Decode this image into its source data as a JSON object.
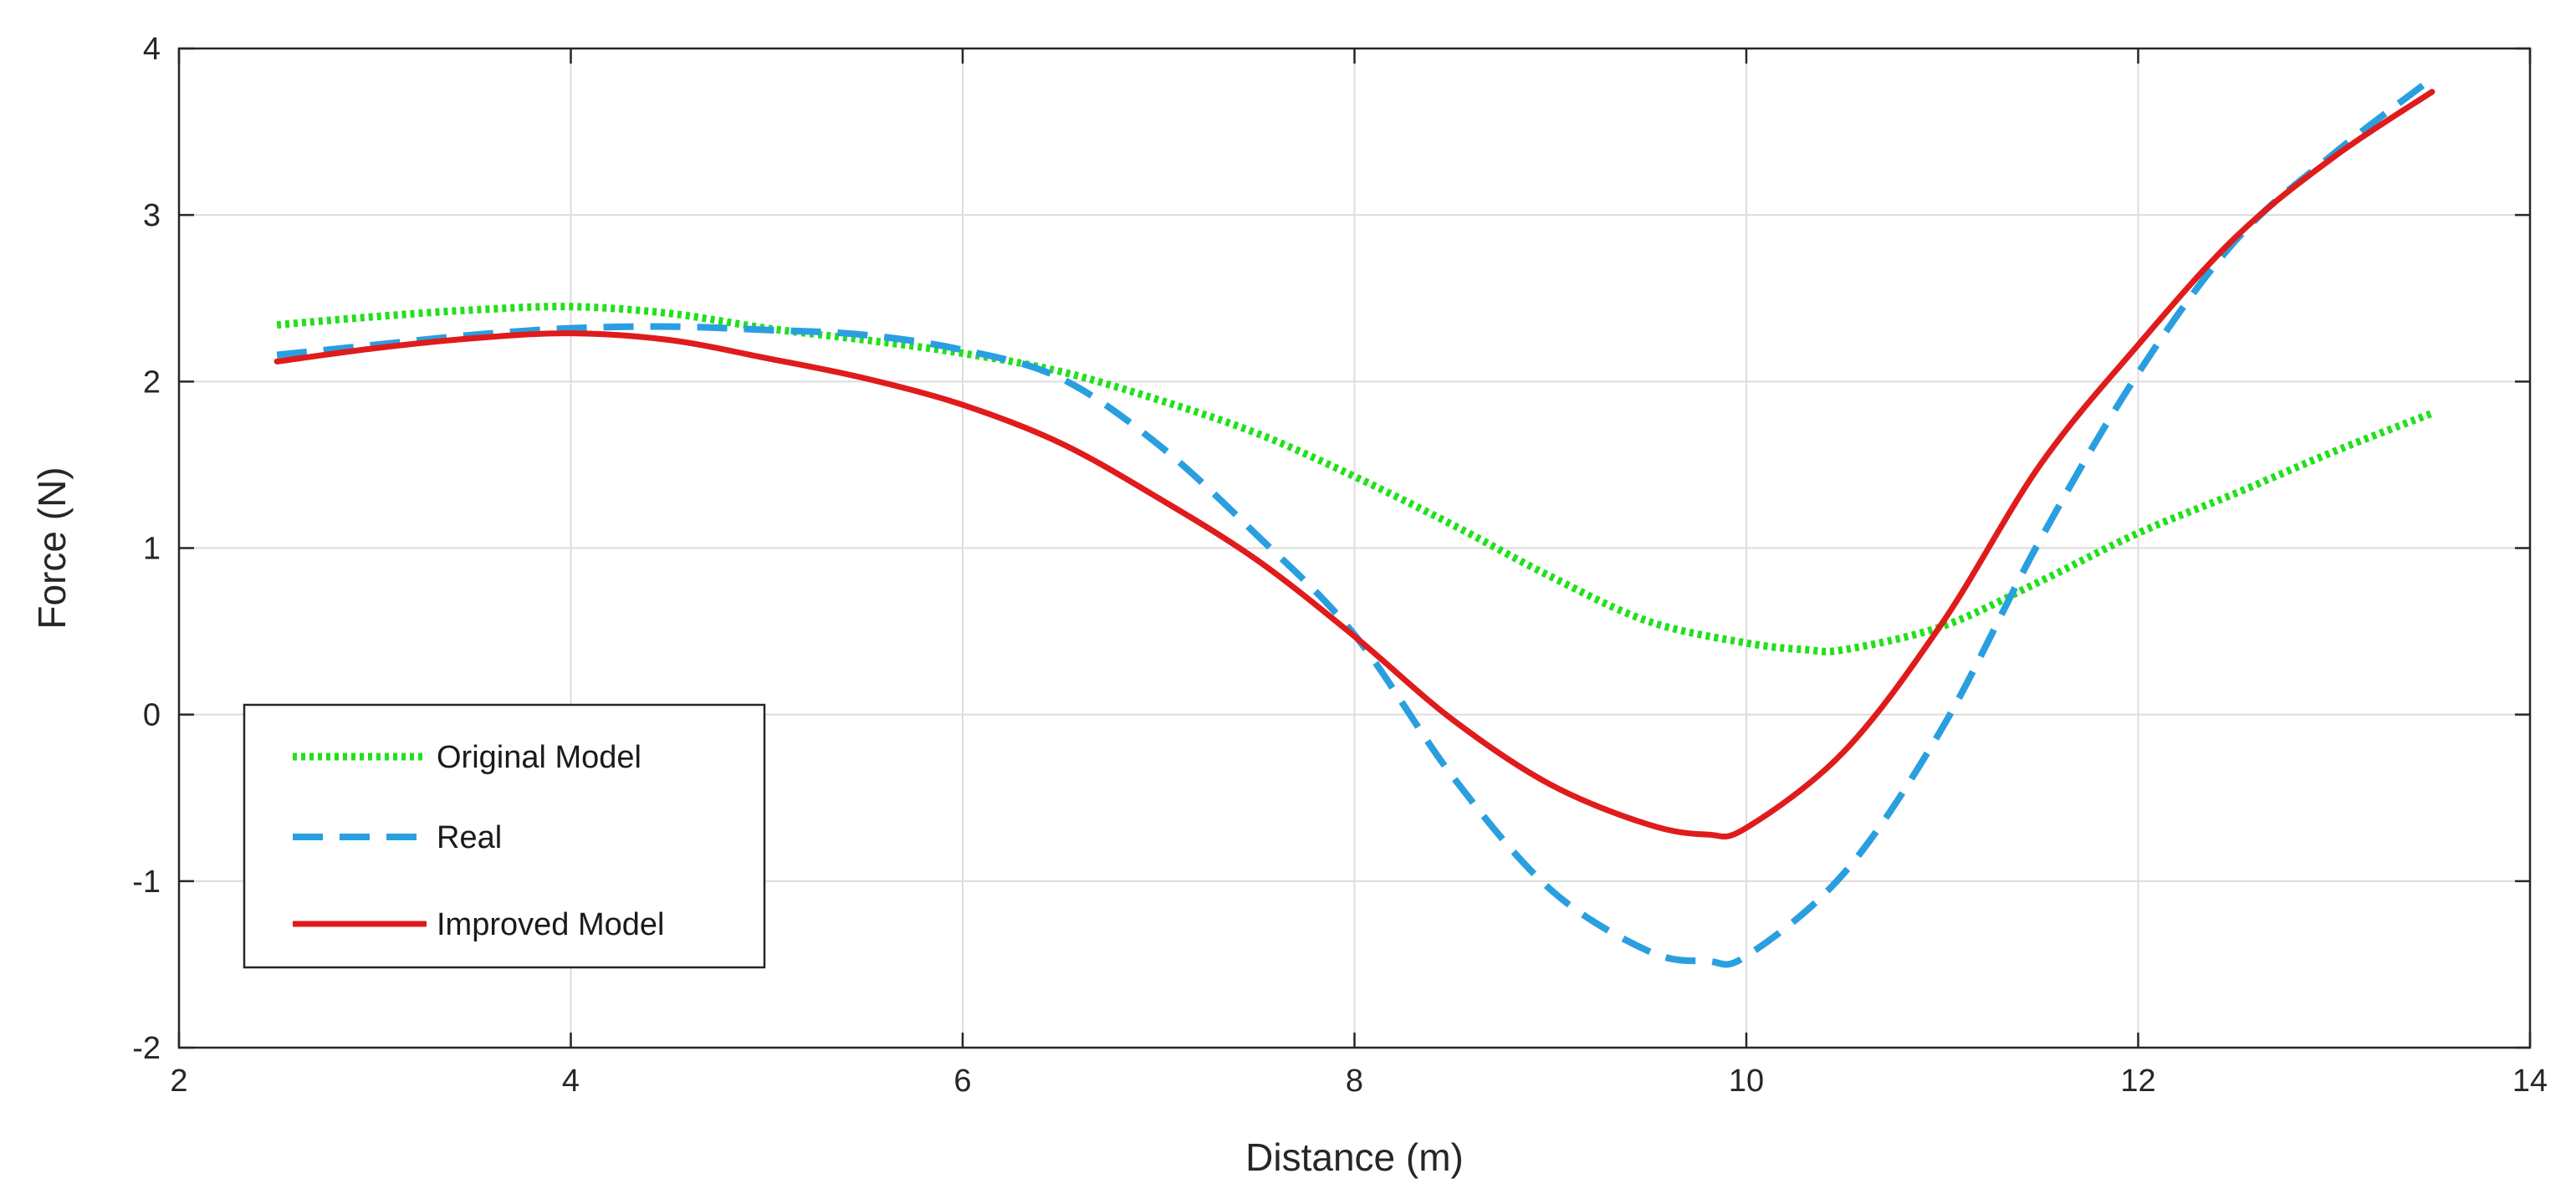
{
  "chart_data": {
    "type": "line",
    "title": "",
    "xlabel": "Distance (m)",
    "ylabel": "Force (N)",
    "xlim": [
      2,
      14
    ],
    "ylim": [
      -2,
      4
    ],
    "xticks": [
      2,
      4,
      6,
      8,
      10,
      12,
      14
    ],
    "yticks": [
      -2,
      -1,
      0,
      1,
      2,
      3,
      4
    ],
    "grid": true,
    "legend_position": "lower-left",
    "series": [
      {
        "name": "Original Model",
        "color": "#22e01c",
        "style": "dotted",
        "x": [
          2.5,
          3,
          3.5,
          4,
          4.5,
          5,
          5.5,
          6,
          6.5,
          7,
          7.5,
          8,
          8.5,
          9,
          9.5,
          10,
          10.3,
          10.5,
          11,
          11.5,
          12,
          12.5,
          13,
          13.5
        ],
        "y": [
          2.34,
          2.39,
          2.43,
          2.45,
          2.41,
          2.32,
          2.25,
          2.17,
          2.06,
          1.89,
          1.69,
          1.43,
          1.14,
          0.83,
          0.56,
          0.43,
          0.39,
          0.39,
          0.53,
          0.8,
          1.09,
          1.33,
          1.58,
          1.81
        ]
      },
      {
        "name": "Real",
        "color": "#2a9fe0",
        "style": "dashed",
        "x": [
          2.5,
          3,
          3.5,
          4,
          4.5,
          5,
          5.5,
          6,
          6.5,
          7,
          7.5,
          8,
          8.5,
          9,
          9.5,
          9.8,
          10,
          10.5,
          11,
          11.5,
          12,
          12.5,
          13,
          13.5
        ],
        "y": [
          2.16,
          2.22,
          2.28,
          2.32,
          2.33,
          2.31,
          2.28,
          2.19,
          2.02,
          1.62,
          1.08,
          0.48,
          -0.37,
          -1.05,
          -1.42,
          -1.48,
          -1.45,
          -0.95,
          -0.08,
          1.05,
          2.05,
          2.85,
          3.37,
          3.82
        ]
      },
      {
        "name": "Improved Model",
        "color": "#e01b1b",
        "style": "solid",
        "x": [
          2.5,
          3,
          3.5,
          4,
          4.5,
          5,
          5.5,
          6,
          6.5,
          7,
          7.5,
          8,
          8.5,
          9,
          9.5,
          9.8,
          10,
          10.5,
          11,
          11.5,
          12,
          12.5,
          13,
          13.5
        ],
        "y": [
          2.12,
          2.2,
          2.26,
          2.29,
          2.25,
          2.14,
          2.02,
          1.86,
          1.63,
          1.3,
          0.93,
          0.47,
          -0.03,
          -0.42,
          -0.66,
          -0.72,
          -0.68,
          -0.22,
          0.55,
          1.5,
          2.22,
          2.87,
          3.35,
          3.74
        ]
      }
    ]
  }
}
